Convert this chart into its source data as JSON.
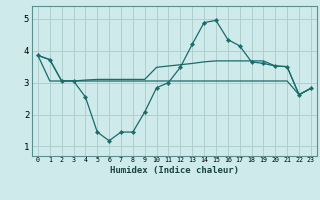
{
  "xlabel": "Humidex (Indice chaleur)",
  "ylabel": "",
  "bg_color": "#ceeaea",
  "grid_color": "#b0d0d0",
  "line_color": "#1a6b6b",
  "xlim": [
    -0.5,
    23.5
  ],
  "ylim": [
    0.7,
    5.4
  ],
  "xticks": [
    0,
    1,
    2,
    3,
    4,
    5,
    6,
    7,
    8,
    9,
    10,
    11,
    12,
    13,
    14,
    15,
    16,
    17,
    18,
    19,
    20,
    21,
    22,
    23
  ],
  "yticks": [
    1,
    2,
    3,
    4,
    5
  ],
  "series1_x": [
    0,
    1,
    2,
    3,
    4,
    5,
    6,
    7,
    8,
    9,
    10,
    11,
    12,
    13,
    14,
    15,
    16,
    17,
    18,
    19,
    20,
    21,
    22,
    23
  ],
  "series1_y": [
    3.85,
    3.72,
    3.05,
    3.05,
    2.55,
    1.45,
    1.18,
    1.45,
    1.45,
    2.08,
    2.84,
    3.0,
    3.48,
    4.2,
    4.88,
    4.95,
    4.35,
    4.15,
    3.65,
    3.6,
    3.52,
    3.5,
    2.62,
    2.82
  ],
  "series2_x": [
    0,
    1,
    2,
    3,
    4,
    5,
    6,
    7,
    8,
    9,
    10,
    11,
    12,
    13,
    14,
    15,
    16,
    17,
    18,
    19,
    20,
    21,
    22,
    23
  ],
  "series2_y": [
    3.85,
    3.05,
    3.05,
    3.05,
    3.05,
    3.05,
    3.05,
    3.05,
    3.05,
    3.05,
    3.05,
    3.05,
    3.05,
    3.05,
    3.05,
    3.05,
    3.05,
    3.05,
    3.05,
    3.05,
    3.05,
    3.05,
    2.62,
    2.82
  ],
  "series3_x": [
    0,
    1,
    2,
    3,
    4,
    5,
    6,
    7,
    8,
    9,
    10,
    11,
    12,
    13,
    14,
    15,
    16,
    17,
    18,
    19,
    20,
    21,
    22,
    23
  ],
  "series3_y": [
    3.85,
    3.72,
    3.05,
    3.05,
    3.08,
    3.1,
    3.1,
    3.1,
    3.1,
    3.1,
    3.48,
    3.52,
    3.56,
    3.6,
    3.65,
    3.68,
    3.68,
    3.68,
    3.68,
    3.68,
    3.52,
    3.5,
    2.62,
    2.82
  ]
}
